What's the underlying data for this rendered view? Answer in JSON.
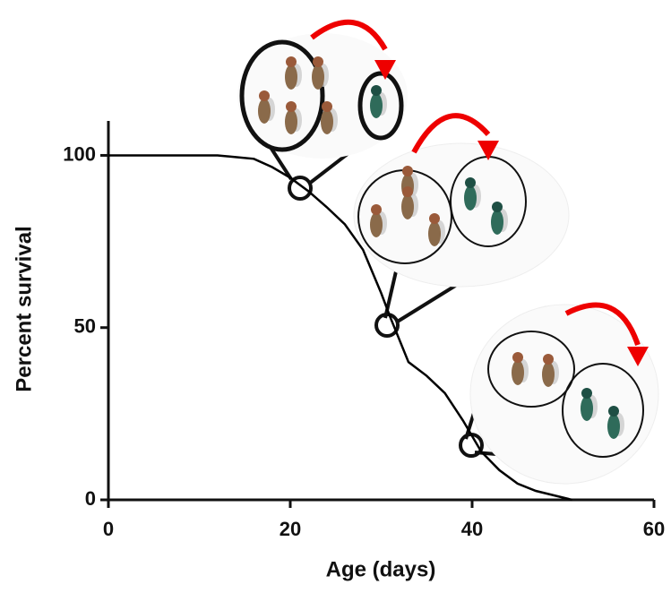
{
  "chart_data": {
    "type": "line",
    "x_label": "Age (days)",
    "y_label": "Percent survival",
    "xlim": [
      0,
      60
    ],
    "ylim": [
      0,
      110
    ],
    "xticks": [
      0,
      20,
      40,
      60
    ],
    "yticks": [
      0,
      50,
      100
    ],
    "series": [
      {
        "color": "#000000",
        "x": [
          0,
          12,
          14,
          16,
          18,
          20,
          22,
          24,
          26,
          28,
          30,
          31,
          32,
          33,
          35,
          37,
          39,
          41,
          43,
          45,
          47,
          49,
          51
        ],
        "values": [
          100,
          100,
          99.5,
          99,
          96.6,
          93.5,
          89.6,
          85,
          80,
          72.6,
          60,
          53,
          46.5,
          40,
          36,
          31,
          23,
          14,
          8.6,
          4.7,
          2.6,
          1.3,
          0
        ]
      }
    ]
  }
}
